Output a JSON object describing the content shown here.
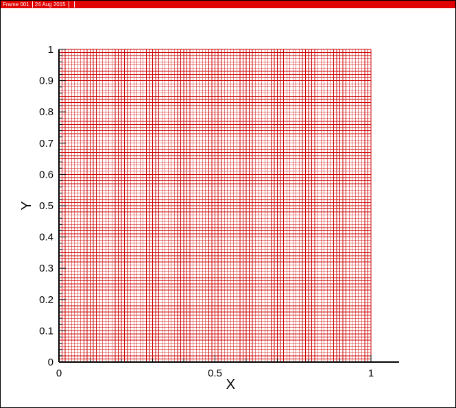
{
  "header": {
    "frame": "Frame 001",
    "date": "24 Aug 2015"
  },
  "chart_data": {
    "type": "mesh",
    "xlabel": "X",
    "ylabel": "Y",
    "xlim": [
      0,
      1.09
    ],
    "ylim": [
      0,
      1
    ],
    "x_ticks": [
      "0",
      "0.5",
      "1"
    ],
    "y_ticks": [
      "0",
      "0.1",
      "0.2",
      "0.3",
      "0.4",
      "0.5",
      "0.6",
      "0.7",
      "0.8",
      "0.9",
      "1"
    ],
    "mesh": {
      "x_range": [
        0,
        1
      ],
      "y_range": [
        0,
        1
      ],
      "nx": 100,
      "ny": 100
    },
    "mesh_color": "#cc0000",
    "grid": false
  }
}
